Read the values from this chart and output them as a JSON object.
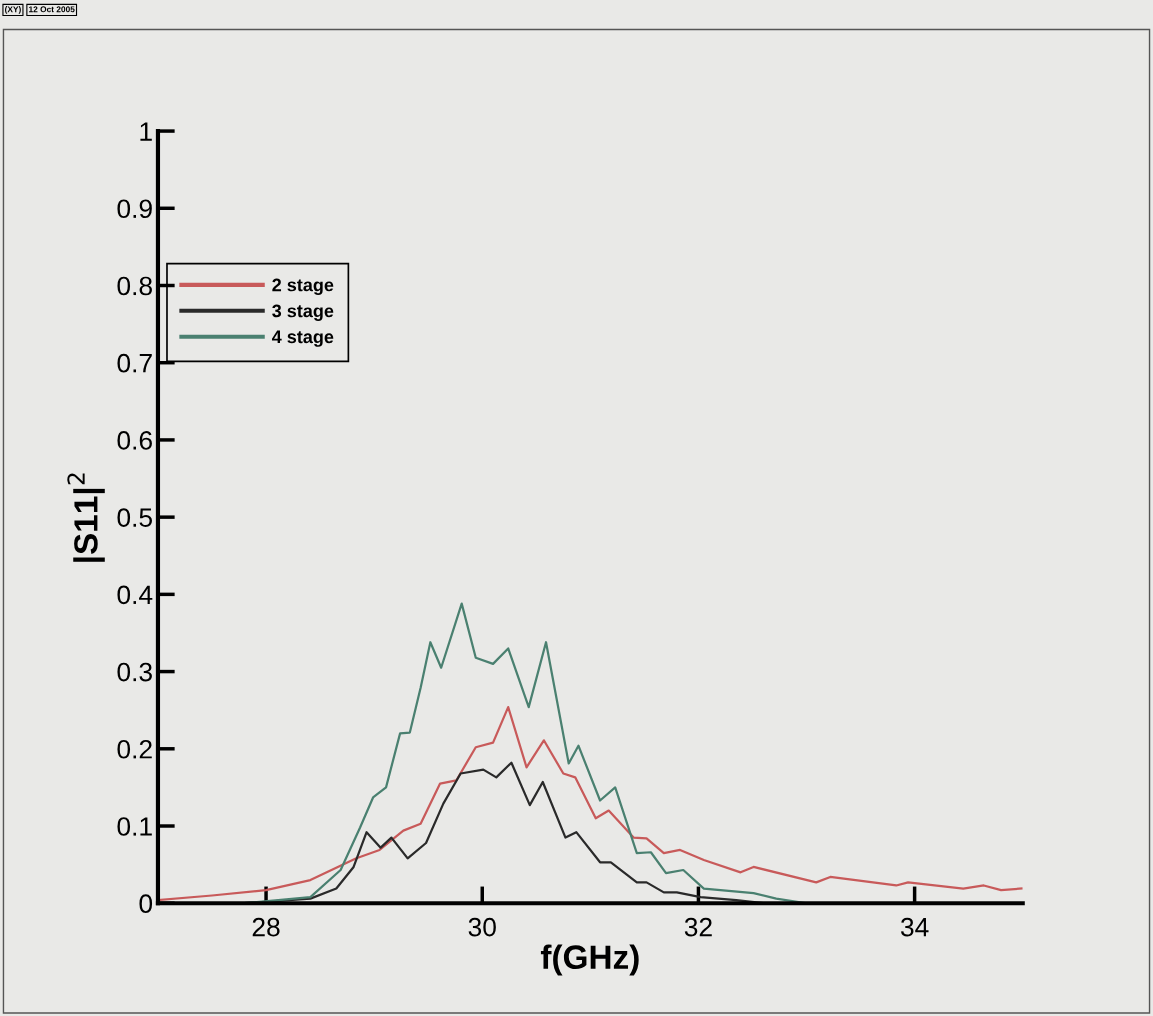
{
  "chart_data": {
    "type": "line",
    "xlabel": "f(GHz)",
    "ylabel": "|S11|$^{2}$",
    "annotations": [
      "(XY)",
      "12 Oct 2005"
    ],
    "xlim": [
      27,
      35
    ],
    "xticks": [
      28,
      30,
      32,
      34
    ],
    "ylim": [
      0,
      1
    ],
    "yticks": [
      0,
      0.1,
      0.2,
      0.3,
      0.4,
      0.5,
      0.6,
      0.7,
      0.8,
      0.9,
      1
    ],
    "grid": false,
    "legend": "top left",
    "marker": "none",
    "line_style": "solid",
    "series": [
      {
        "name": "2 stage",
        "color": "#c85a5a",
        "x": [
          27.0,
          27.5,
          28.0,
          28.41,
          28.83,
          29.05,
          29.27,
          29.43,
          29.61,
          29.76,
          29.94,
          30.1,
          30.24,
          30.41,
          30.57,
          30.75,
          30.86,
          31.05,
          31.17,
          31.4,
          31.52,
          31.68,
          31.83,
          32.05,
          32.39,
          32.51,
          33.09,
          33.22,
          33.83,
          33.94,
          34.45,
          34.64,
          34.8,
          34.99
        ],
        "values": [
          0.004,
          0.01,
          0.017,
          0.03,
          0.058,
          0.069,
          0.094,
          0.103,
          0.155,
          0.159,
          0.202,
          0.208,
          0.254,
          0.176,
          0.211,
          0.168,
          0.163,
          0.11,
          0.12,
          0.085,
          0.084,
          0.065,
          0.069,
          0.056,
          0.04,
          0.047,
          0.027,
          0.034,
          0.023,
          0.027,
          0.019,
          0.023,
          0.017,
          0.019
        ]
      },
      {
        "name": "3 stage",
        "color": "#2a2a2a",
        "x": [
          27.8,
          28.41,
          28.65,
          28.81,
          28.93,
          29.06,
          29.16,
          29.31,
          29.48,
          29.64,
          29.8,
          30.01,
          30.13,
          30.27,
          30.44,
          30.56,
          30.77,
          30.87,
          31.09,
          31.19,
          31.43,
          31.52,
          31.68,
          31.8,
          32.02,
          32.35,
          32.6,
          35.0
        ],
        "values": [
          0,
          0.006,
          0.019,
          0.047,
          0.092,
          0.072,
          0.085,
          0.058,
          0.078,
          0.129,
          0.168,
          0.173,
          0.163,
          0.182,
          0.127,
          0.157,
          0.085,
          0.092,
          0.053,
          0.053,
          0.027,
          0.027,
          0.014,
          0.014,
          0.008,
          0.004,
          0,
          0
        ]
      },
      {
        "name": "4 stage",
        "color": "#4a8070",
        "x": [
          27.8,
          28.41,
          28.69,
          28.87,
          28.99,
          29.11,
          29.24,
          29.33,
          29.43,
          29.52,
          29.62,
          29.81,
          29.94,
          30.1,
          30.24,
          30.43,
          30.59,
          30.8,
          30.89,
          31.09,
          31.23,
          31.43,
          31.56,
          31.7,
          31.86,
          32.05,
          32.51,
          32.72,
          33.0,
          35.0
        ],
        "values": [
          0,
          0.008,
          0.043,
          0.098,
          0.137,
          0.15,
          0.22,
          0.221,
          0.279,
          0.338,
          0.305,
          0.388,
          0.318,
          0.31,
          0.33,
          0.254,
          0.338,
          0.181,
          0.204,
          0.133,
          0.15,
          0.065,
          0.066,
          0.039,
          0.043,
          0.019,
          0.013,
          0.006,
          0,
          0
        ]
      }
    ]
  }
}
